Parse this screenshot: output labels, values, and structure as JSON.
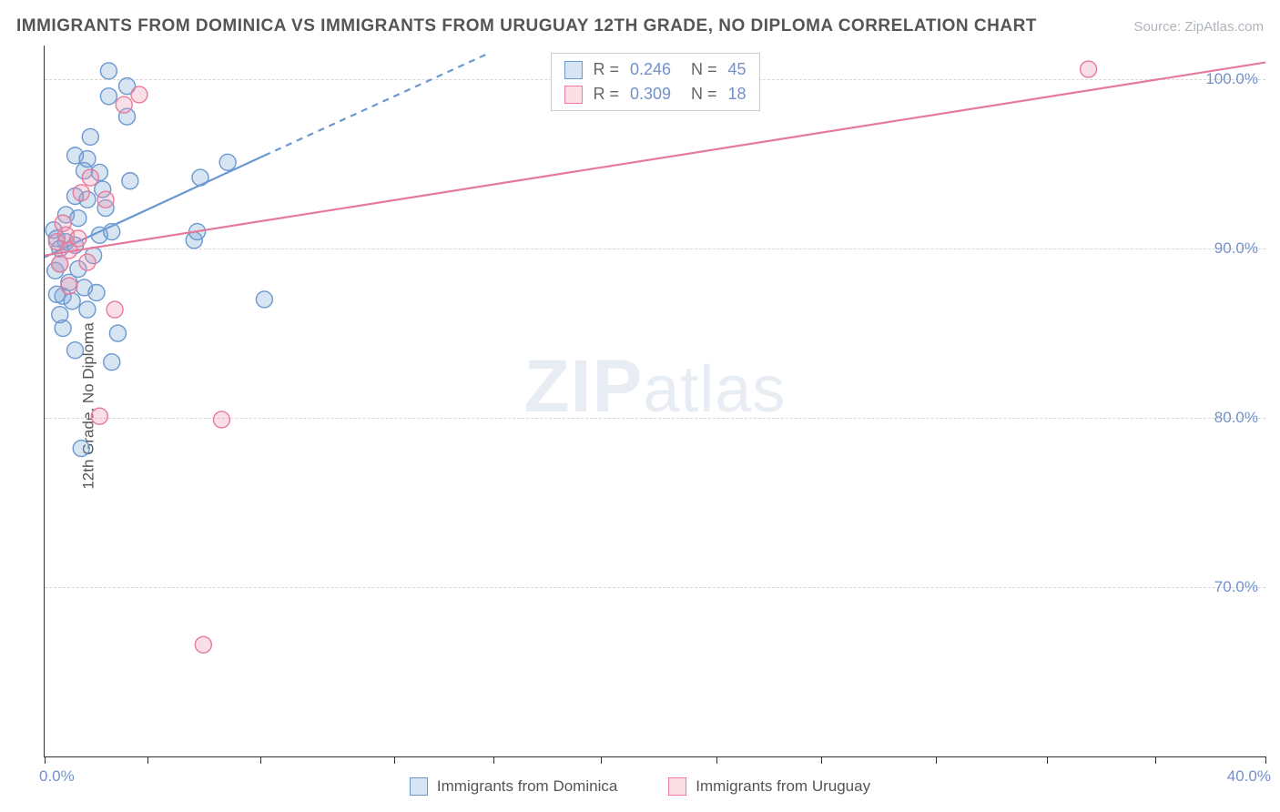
{
  "title": "IMMIGRANTS FROM DOMINICA VS IMMIGRANTS FROM URUGUAY 12TH GRADE, NO DIPLOMA CORRELATION CHART",
  "source": "Source: ZipAtlas.com",
  "y_axis_label": "12th Grade, No Diploma",
  "watermark_bold": "ZIP",
  "watermark_rest": "atlas",
  "chart": {
    "type": "scatter",
    "xlim": [
      0,
      40
    ],
    "ylim": [
      60,
      102
    ],
    "x_ticks_pct": [
      0,
      8.4,
      17.7,
      28.6,
      36.8,
      45.6,
      55.0,
      63.6,
      73.0,
      82.1,
      91.0,
      100
    ],
    "x_tick_labels": {
      "left": "0.0%",
      "right": "40.0%"
    },
    "y_grid": [
      {
        "value": 70,
        "label": "70.0%"
      },
      {
        "value": 80,
        "label": "80.0%"
      },
      {
        "value": 90,
        "label": "90.0%"
      },
      {
        "value": 100,
        "label": "100.0%"
      }
    ],
    "background_color": "#ffffff",
    "grid_color": "#d6d6d6",
    "axis_color": "#333333",
    "tick_label_color": "#7391c8",
    "marker_radius": 9,
    "marker_stroke_width": 1.4,
    "marker_fill_opacity": 0.28,
    "line_width": 2.2
  },
  "series": [
    {
      "key": "dominica",
      "label": "Immigrants from Dominica",
      "color": "#6a98d0",
      "fill": "rgba(124,164,213,0.30)",
      "r_value": "0.246",
      "n_value": "45",
      "regression": {
        "x1": 0,
        "y1": 89.5,
        "x2": 7.2,
        "y2": 95.5,
        "dashed_to_x": 14.5,
        "dashed_to_y": 101.5
      },
      "points": [
        [
          0.3,
          91.1
        ],
        [
          0.4,
          90.6
        ],
        [
          0.5,
          89.1
        ],
        [
          0.5,
          90.0
        ],
        [
          0.35,
          88.7
        ],
        [
          0.7,
          92.0
        ],
        [
          0.7,
          90.4
        ],
        [
          0.6,
          87.2
        ],
        [
          0.8,
          88.0
        ],
        [
          0.4,
          87.3
        ],
        [
          0.5,
          86.1
        ],
        [
          0.9,
          86.9
        ],
        [
          0.6,
          85.3
        ],
        [
          1.0,
          95.5
        ],
        [
          1.0,
          93.1
        ],
        [
          1.1,
          91.8
        ],
        [
          1.0,
          90.2
        ],
        [
          1.4,
          92.9
        ],
        [
          1.3,
          94.6
        ],
        [
          1.1,
          88.8
        ],
        [
          1.3,
          87.7
        ],
        [
          1.6,
          89.6
        ],
        [
          1.5,
          96.6
        ],
        [
          1.4,
          95.3
        ],
        [
          1.8,
          94.5
        ],
        [
          1.8,
          90.8
        ],
        [
          1.9,
          93.5
        ],
        [
          2.0,
          92.4
        ],
        [
          2.2,
          91.0
        ],
        [
          2.1,
          99.0
        ],
        [
          2.1,
          100.5
        ],
        [
          2.2,
          83.3
        ],
        [
          2.4,
          85.0
        ],
        [
          2.7,
          97.8
        ],
        [
          2.8,
          94.0
        ],
        [
          2.7,
          99.6
        ],
        [
          1.2,
          78.2
        ],
        [
          4.9,
          90.5
        ],
        [
          5.1,
          94.2
        ],
        [
          5.0,
          91.0
        ],
        [
          6.0,
          95.1
        ],
        [
          7.2,
          87.0
        ],
        [
          1.0,
          84.0
        ],
        [
          1.4,
          86.4
        ],
        [
          1.7,
          87.4
        ]
      ]
    },
    {
      "key": "uruguay",
      "label": "Immigrants from Uruguay",
      "color": "#e67a9a",
      "fill": "rgba(238,150,176,0.30)",
      "r_value": "0.309",
      "n_value": "18",
      "regression": {
        "x1": 0,
        "y1": 89.6,
        "x2": 40,
        "y2": 101.0
      },
      "points": [
        [
          0.4,
          90.4
        ],
        [
          0.6,
          91.5
        ],
        [
          0.5,
          89.1
        ],
        [
          0.7,
          90.8
        ],
        [
          0.8,
          89.9
        ],
        [
          0.8,
          87.8
        ],
        [
          1.1,
          90.6
        ],
        [
          1.2,
          93.3
        ],
        [
          1.5,
          94.2
        ],
        [
          1.4,
          89.2
        ],
        [
          2.0,
          92.9
        ],
        [
          2.3,
          86.4
        ],
        [
          2.6,
          98.5
        ],
        [
          1.8,
          80.1
        ],
        [
          3.1,
          99.1
        ],
        [
          5.8,
          79.9
        ],
        [
          5.2,
          66.6
        ],
        [
          34.2,
          100.6
        ]
      ]
    }
  ],
  "stats_labels": {
    "r": "R =",
    "n": "N ="
  }
}
